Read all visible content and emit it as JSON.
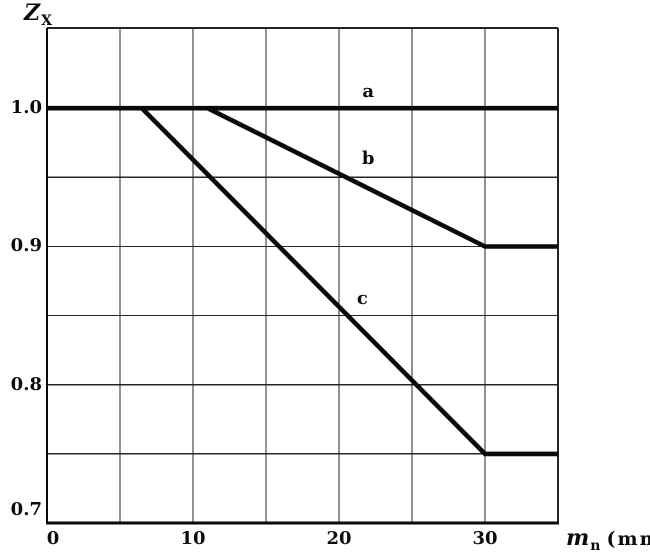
{
  "chart_data": {
    "type": "line",
    "title": "",
    "xlabel": "m_n (mm)",
    "ylabel": "Z_X",
    "xlabel_parts": {
      "main": "m",
      "sub": "n",
      "unit": "(mm)"
    },
    "ylabel_parts": {
      "main": "Z",
      "sub": "X"
    },
    "xlim": [
      0,
      35
    ],
    "ylim": [
      0.7,
      1.058
    ],
    "grid": true,
    "legend_position": "inline-labels",
    "x_gridlines": [
      5,
      10,
      15,
      20,
      25,
      30
    ],
    "y_gridlines": [
      0.75,
      0.8,
      0.85,
      0.9,
      0.95
    ],
    "x_ticks": [
      {
        "value": 0,
        "label": "0",
        "dx": 6
      },
      {
        "value": 10,
        "label": "10"
      },
      {
        "value": 20,
        "label": "20"
      },
      {
        "value": 30,
        "label": "30"
      }
    ],
    "y_ticks": [
      {
        "value": 1.0,
        "label": "1.0"
      },
      {
        "value": 0.9,
        "label": "0.9"
      },
      {
        "value": 0.8,
        "label": "0.8"
      },
      {
        "value": 0.7,
        "label": "0.7",
        "dy": -13
      }
    ],
    "series": [
      {
        "name": "a",
        "points": [
          [
            0,
            1.0
          ],
          [
            35,
            1.0
          ]
        ],
        "label_at": [
          22.0,
          1.012
        ]
      },
      {
        "name": "b",
        "points": [
          [
            11,
            1.0
          ],
          [
            30,
            0.9
          ],
          [
            35,
            0.9
          ]
        ],
        "label_at": [
          22.0,
          0.963
        ]
      },
      {
        "name": "c",
        "points": [
          [
            6.5,
            1.0
          ],
          [
            30,
            0.75
          ],
          [
            35,
            0.75
          ]
        ],
        "label_at": [
          21.6,
          0.862
        ]
      }
    ],
    "colors": {
      "line": "#0a0a0a",
      "grid": "#262626",
      "axis": "#0a0a0a",
      "text": "#0c0c0c",
      "background": "#ffffff"
    }
  }
}
